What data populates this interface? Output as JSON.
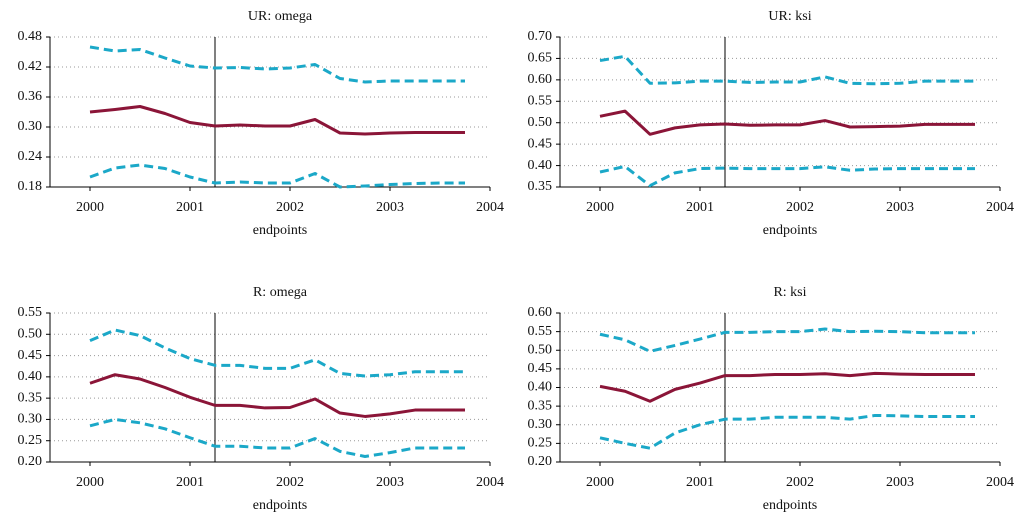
{
  "chart_data": [
    {
      "type": "line",
      "title": "UR: omega",
      "xlabel": "endpoints",
      "x": [
        2000,
        2000.25,
        2000.5,
        2000.75,
        2001,
        2001.25,
        2001.5,
        2001.75,
        2002,
        2002.25,
        2002.5,
        2002.75,
        2003,
        2003.25,
        2003.5,
        2003.75
      ],
      "xlim": [
        1999.6,
        2004
      ],
      "xticks": [
        2000,
        2001,
        2002,
        2003,
        2004
      ],
      "ylim": [
        0.18,
        0.48
      ],
      "yticks": [
        0.18,
        0.24,
        {
          "value": 0.3,
          "label": "0.30"
        },
        0.36,
        0.42,
        0.48
      ],
      "grid": true,
      "vline": 2001.25,
      "series": [
        {
          "color": "#1ba8c8",
          "dashed": true,
          "values": [
            0.46,
            0.452,
            0.455,
            0.438,
            0.422,
            0.418,
            0.419,
            0.416,
            0.418,
            0.425,
            0.397,
            0.39,
            0.392,
            0.392,
            0.392,
            0.392
          ]
        },
        {
          "color": "#8b1538",
          "dashed": false,
          "values": [
            0.33,
            0.335,
            0.341,
            0.327,
            0.309,
            0.302,
            0.304,
            0.302,
            0.302,
            0.315,
            0.288,
            0.286,
            0.288,
            0.289,
            0.289,
            0.289
          ]
        },
        {
          "color": "#1ba8c8",
          "dashed": true,
          "values": [
            0.2,
            0.218,
            0.224,
            0.217,
            0.2,
            0.188,
            0.19,
            0.188,
            0.188,
            0.207,
            0.18,
            0.182,
            0.185,
            0.187,
            0.188,
            0.188
          ]
        }
      ]
    },
    {
      "type": "line",
      "title": "UR: ksi",
      "xlabel": "endpoints",
      "x": [
        2000,
        2000.25,
        2000.5,
        2000.75,
        2001,
        2001.25,
        2001.5,
        2001.75,
        2002,
        2002.25,
        2002.5,
        2002.75,
        2003,
        2003.25,
        2003.5,
        2003.75
      ],
      "xlim": [
        1999.6,
        2004
      ],
      "xticks": [
        2000,
        2001,
        2002,
        2003,
        2004
      ],
      "ylim": [
        0.35,
        0.7
      ],
      "yticks": [
        0.35,
        {
          "value": 0.4,
          "label": "0.40"
        },
        0.45,
        {
          "value": 0.5,
          "label": "0.50"
        },
        0.55,
        {
          "value": 0.6,
          "label": "0.60"
        },
        0.65,
        {
          "value": 0.7,
          "label": "0.70"
        }
      ],
      "grid": true,
      "vline": 2001.25,
      "series": [
        {
          "color": "#1ba8c8",
          "dashed": true,
          "values": [
            0.645,
            0.655,
            0.592,
            0.593,
            0.597,
            0.597,
            0.594,
            0.595,
            0.595,
            0.607,
            0.592,
            0.591,
            0.592,
            0.597,
            0.597,
            0.597
          ]
        },
        {
          "color": "#8b1538",
          "dashed": false,
          "values": [
            0.515,
            0.527,
            0.473,
            0.488,
            0.495,
            0.497,
            0.494,
            0.495,
            0.495,
            0.505,
            0.49,
            0.491,
            0.492,
            0.496,
            0.496,
            0.496
          ]
        },
        {
          "color": "#1ba8c8",
          "dashed": true,
          "values": [
            0.385,
            0.398,
            0.353,
            0.383,
            0.393,
            0.394,
            0.393,
            0.393,
            0.393,
            0.397,
            0.389,
            0.392,
            0.393,
            0.393,
            0.393,
            0.393
          ]
        }
      ]
    },
    {
      "type": "line",
      "title": "R: omega",
      "xlabel": "endpoints",
      "x": [
        2000,
        2000.25,
        2000.5,
        2000.75,
        2001,
        2001.25,
        2001.5,
        2001.75,
        2002,
        2002.25,
        2002.5,
        2002.75,
        2003,
        2003.25,
        2003.5,
        2003.75
      ],
      "xlim": [
        1999.6,
        2004
      ],
      "xticks": [
        2000,
        2001,
        2002,
        2003,
        2004
      ],
      "ylim": [
        0.2,
        0.55
      ],
      "yticks": [
        {
          "value": 0.2,
          "label": "0.20"
        },
        0.25,
        {
          "value": 0.3,
          "label": "0.30"
        },
        0.35,
        {
          "value": 0.4,
          "label": "0.40"
        },
        0.45,
        {
          "value": 0.5,
          "label": "0.50"
        },
        0.55
      ],
      "grid": true,
      "vline": 2001.25,
      "series": [
        {
          "color": "#1ba8c8",
          "dashed": true,
          "values": [
            0.485,
            0.51,
            0.497,
            0.468,
            0.443,
            0.427,
            0.427,
            0.42,
            0.42,
            0.44,
            0.408,
            0.402,
            0.405,
            0.412,
            0.412,
            0.412
          ]
        },
        {
          "color": "#8b1538",
          "dashed": false,
          "values": [
            0.385,
            0.405,
            0.395,
            0.375,
            0.352,
            0.333,
            0.333,
            0.327,
            0.328,
            0.348,
            0.315,
            0.307,
            0.313,
            0.322,
            0.322,
            0.322
          ]
        },
        {
          "color": "#1ba8c8",
          "dashed": true,
          "values": [
            0.285,
            0.3,
            0.292,
            0.278,
            0.257,
            0.237,
            0.237,
            0.233,
            0.233,
            0.255,
            0.225,
            0.213,
            0.222,
            0.233,
            0.233,
            0.233
          ]
        }
      ]
    },
    {
      "type": "line",
      "title": "R: ksi",
      "xlabel": "endpoints",
      "x": [
        2000,
        2000.25,
        2000.5,
        2000.75,
        2001,
        2001.25,
        2001.5,
        2001.75,
        2002,
        2002.25,
        2002.5,
        2002.75,
        2003,
        2003.25,
        2003.5,
        2003.75
      ],
      "xlim": [
        1999.6,
        2004
      ],
      "xticks": [
        2000,
        2001,
        2002,
        2003,
        2004
      ],
      "ylim": [
        0.2,
        0.6
      ],
      "yticks": [
        {
          "value": 0.2,
          "label": "0.20"
        },
        0.25,
        {
          "value": 0.3,
          "label": "0.30"
        },
        0.35,
        {
          "value": 0.4,
          "label": "0.40"
        },
        0.45,
        {
          "value": 0.5,
          "label": "0.50"
        },
        0.55,
        {
          "value": 0.6,
          "label": "0.60"
        }
      ],
      "grid": true,
      "vline": 2001.25,
      "series": [
        {
          "color": "#1ba8c8",
          "dashed": true,
          "values": [
            0.543,
            0.528,
            0.497,
            0.513,
            0.53,
            0.548,
            0.548,
            0.55,
            0.55,
            0.557,
            0.55,
            0.551,
            0.55,
            0.547,
            0.547,
            0.547
          ]
        },
        {
          "color": "#8b1538",
          "dashed": false,
          "values": [
            0.403,
            0.39,
            0.363,
            0.395,
            0.412,
            0.432,
            0.432,
            0.435,
            0.435,
            0.437,
            0.432,
            0.438,
            0.436,
            0.435,
            0.435,
            0.435
          ]
        },
        {
          "color": "#1ba8c8",
          "dashed": true,
          "values": [
            0.265,
            0.25,
            0.237,
            0.278,
            0.3,
            0.315,
            0.315,
            0.32,
            0.32,
            0.32,
            0.315,
            0.325,
            0.324,
            0.322,
            0.322,
            0.322
          ]
        }
      ]
    }
  ]
}
